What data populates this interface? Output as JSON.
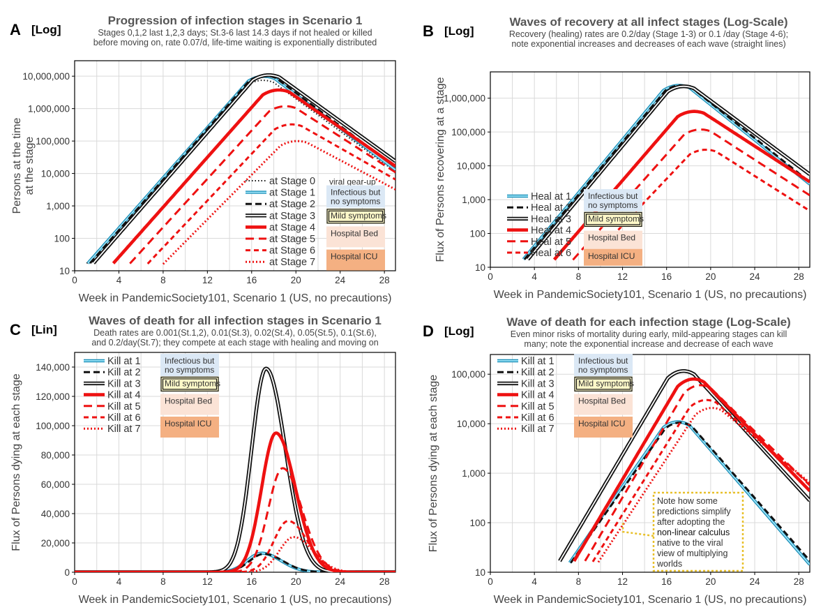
{
  "colors": {
    "cyan": "#3cb7e0",
    "black": "#111111",
    "red": "#ee1111",
    "grid": "#d9d9d9",
    "blue_box": "#dbe8f5",
    "yellow_box": "#fdf8c8",
    "pink_box": "#fbe3d6",
    "orange_box": "#f4b082",
    "note_border": "#e8c02a"
  },
  "stage_boxes": {
    "infectious": "Infectious but no symptoms",
    "mild": "Mild symptoms",
    "hospital_bed": "Hospital Bed",
    "hospital_icu": "Hospital ICU",
    "viral": "viral gear-up"
  },
  "chart_data": [
    {
      "panel": "A",
      "scale_tag": "[Log]",
      "type": "line",
      "log_y": true,
      "title": "Progression of infection stages in Scenario 1",
      "subtitle": [
        "Stages 0,1,2 last 1,2,3 days; St.3-6 last 14.3 days if not healed or killed",
        "before moving on, rate 0.07/d, life-time waiting is exponentially distributed"
      ],
      "xlabel": "Week in PandemicSociety101, Scenario 1 (US, no precautions)",
      "ylabel": [
        "Persons at the time",
        "at the stage"
      ],
      "xlim": [
        0,
        29
      ],
      "ylim": [
        10,
        30000000
      ],
      "xticks": [
        0,
        4,
        8,
        12,
        16,
        20,
        24,
        28
      ],
      "yticks": [
        10,
        100,
        1000,
        10000,
        100000,
        1000000,
        10000000
      ],
      "ytick_labels": [
        "10",
        "100",
        "1,000",
        "10,000",
        "100,000",
        "1,000,000",
        "10,000,000"
      ],
      "series": [
        {
          "name": "at Stage 0",
          "style": "dot-black",
          "peak": 9000000,
          "peak_week": 16.8,
          "start_week": 1.1,
          "end_value": 8000
        },
        {
          "name": "at Stage 1",
          "style": "cyan",
          "peak": 12000000,
          "peak_week": 16.9,
          "start_week": 1.2,
          "end_value": 9000
        },
        {
          "name": "at Stage 2",
          "style": "dash-black",
          "peak": 12500000,
          "peak_week": 17.0,
          "start_week": 1.4,
          "end_value": 11000
        },
        {
          "name": "at Stage 3",
          "style": "double-black",
          "peak": 13000000,
          "peak_week": 17.3,
          "start_week": 1.7,
          "end_value": 17000
        },
        {
          "name": "at Stage 4",
          "style": "thick-red",
          "peak": 4500000,
          "peak_week": 18.2,
          "start_week": 3.5,
          "end_value": 12000
        },
        {
          "name": "at Stage 5",
          "style": "dash-red",
          "peak": 1400000,
          "peak_week": 18.8,
          "start_week": 5.0,
          "end_value": 8000
        },
        {
          "name": "at Stage 6",
          "style": "dash-red-thin",
          "peak": 380000,
          "peak_week": 19.3,
          "start_week": 6.6,
          "end_value": 5000
        },
        {
          "name": "at Stage 7",
          "style": "dot-red",
          "peak": 115000,
          "peak_week": 19.8,
          "start_week": 8.0,
          "end_value": 2500
        }
      ],
      "legend_labels": [
        "at Stage 0",
        "at Stage 1",
        "at Stage 2",
        "at Stage 3",
        "at Stage 4",
        "at Stage 5",
        "at Stage 6",
        "at Stage 7"
      ]
    },
    {
      "panel": "B",
      "scale_tag": "[Log]",
      "type": "line",
      "log_y": true,
      "title": "Waves of recovery at all infect stages (Log-Scale)",
      "subtitle": [
        "Recovery (healing) rates are 0.2/day (Stage 1-3) or 0.1 /day (Stage 4-6);",
        "note exponential increases and decreases of each wave (straight lines)"
      ],
      "xlabel": "Week in PandemicSociety101, Scenario 1 (US, no precautions)",
      "ylabel": [
        "Flux of Persons recovering at a stage"
      ],
      "xlim": [
        0,
        29
      ],
      "ylim": [
        10,
        6000000
      ],
      "xticks": [
        0,
        4,
        8,
        12,
        16,
        20,
        24,
        28
      ],
      "yticks": [
        10,
        100,
        1000,
        10000,
        100000,
        1000000
      ],
      "ytick_labels": [
        "10",
        "100",
        "1,000",
        "10,000",
        "100,000",
        "1,000,000"
      ],
      "series": [
        {
          "name": "Heal at 1",
          "style": "cyan",
          "peak": 2900000,
          "peak_week": 16.9,
          "start_week": 3.0,
          "end_value": 2000
        },
        {
          "name": "Heal at 2",
          "style": "dash-black",
          "peak": 2900000,
          "peak_week": 17.1,
          "start_week": 3.1,
          "end_value": 2300
        },
        {
          "name": "Heal at 3",
          "style": "double-black",
          "peak": 2700000,
          "peak_week": 17.3,
          "start_week": 3.4,
          "end_value": 4000
        },
        {
          "name": "Heal at 4",
          "style": "thick-red",
          "peak": 480000,
          "peak_week": 18.2,
          "start_week": 5.8,
          "end_value": 2500
        },
        {
          "name": "Heal at 5",
          "style": "dash-red",
          "peak": 140000,
          "peak_week": 18.8,
          "start_week": 7.5,
          "end_value": 1000
        },
        {
          "name": "Heal at 6",
          "style": "dash-red-thin",
          "peak": 35000,
          "peak_week": 19.3,
          "start_week": 9.0,
          "end_value": 350
        }
      ],
      "legend_labels": [
        "Heal at 1",
        "Heal at 2",
        "Heal at 3",
        "Heal at 4",
        "Heal at 5",
        "Heal at 6"
      ]
    },
    {
      "panel": "C",
      "scale_tag": "[Lin]",
      "type": "line",
      "log_y": false,
      "title": "Waves of death for all infection stages in Scenario 1",
      "subtitle": [
        "Death rates are 0.001(St.1,2), 0.01(St.3), 0.02(St.4), 0.05(St.5), 0.1(St.6),",
        "and 0.2/day(St.7); they compete at each stage with healing and moving on"
      ],
      "xlabel": "Week in PandemicSociety101, Scenario 1 (US, no precautions)",
      "ylabel": [
        "Flux of Persons dying at each stage"
      ],
      "xlim": [
        0,
        29
      ],
      "ylim": [
        0,
        150000
      ],
      "xticks": [
        0,
        4,
        8,
        12,
        16,
        20,
        24,
        28
      ],
      "yticks": [
        0,
        20000,
        40000,
        60000,
        80000,
        100000,
        120000,
        140000
      ],
      "ytick_labels": [
        "0",
        "20,000",
        "40,000",
        "60,000",
        "80,000",
        "100,000",
        "120,000",
        "140,000"
      ],
      "series": [
        {
          "name": "Kill at 1",
          "style": "cyan",
          "peak": 13000,
          "peak_week": 16.9
        },
        {
          "name": "Kill at 2",
          "style": "dash-black",
          "peak": 12500,
          "peak_week": 17.1
        },
        {
          "name": "Kill at 3",
          "style": "double-black",
          "peak": 139000,
          "peak_week": 17.3
        },
        {
          "name": "Kill at 4",
          "style": "thick-red",
          "peak": 95000,
          "peak_week": 18.2
        },
        {
          "name": "Kill at 5",
          "style": "dash-red",
          "peak": 71000,
          "peak_week": 18.8
        },
        {
          "name": "Kill at 6",
          "style": "dash-red-thin",
          "peak": 35000,
          "peak_week": 19.3
        },
        {
          "name": "Kill at 7",
          "style": "dot-red",
          "peak": 24000,
          "peak_week": 19.8
        }
      ],
      "legend_labels": [
        "Kill at 1",
        "Kill at 2",
        "Kill at 3",
        "Kill at 4",
        "Kill at 5",
        "Kill at 6",
        "Kill at 7"
      ]
    },
    {
      "panel": "D",
      "scale_tag": "[Log]",
      "type": "line",
      "log_y": true,
      "title": "Wave of death for each infection stage (Log-Scale)",
      "subtitle": [
        "Even minor risks of mortality during early, mild-appearing stages can kill",
        "many; note the exponential increase and decrease of each wave"
      ],
      "xlabel": "Week in PandemicSociety101, Scenario 1 (US, no precautions)",
      "ylabel": [
        "Flux of Persons dying at each stage"
      ],
      "xlim": [
        0,
        29
      ],
      "ylim": [
        10,
        250000
      ],
      "xticks": [
        0,
        4,
        8,
        12,
        16,
        20,
        24,
        28
      ],
      "yticks": [
        10,
        100,
        1000,
        10000,
        100000
      ],
      "ytick_labels": [
        "10",
        "100",
        "1,000",
        "10,000",
        "100,000"
      ],
      "series": [
        {
          "name": "Kill at 1",
          "style": "cyan",
          "peak": 13000,
          "peak_week": 16.9,
          "start_week": 7.2,
          "end_value": 10
        },
        {
          "name": "Kill at 2",
          "style": "dash-black",
          "peak": 12500,
          "peak_week": 17.1,
          "start_week": 7.3,
          "end_value": 12
        },
        {
          "name": "Kill at 3",
          "style": "double-black",
          "peak": 139000,
          "peak_week": 17.3,
          "start_week": 6.3,
          "end_value": 200
        },
        {
          "name": "Kill at 4",
          "style": "thick-red",
          "peak": 95000,
          "peak_week": 18.2,
          "start_week": 7.6,
          "end_value": 320
        },
        {
          "name": "Kill at 5",
          "style": "dash-red",
          "peak": 71000,
          "peak_week": 18.8,
          "start_week": 8.6,
          "end_value": 420
        },
        {
          "name": "Kill at 6",
          "style": "dash-red-thin",
          "peak": 35000,
          "peak_week": 19.3,
          "start_week": 9.3,
          "end_value": 460
        },
        {
          "name": "Kill at 7",
          "style": "dot-red",
          "peak": 24000,
          "peak_week": 19.8,
          "start_week": 9.8,
          "end_value": 500
        }
      ],
      "legend_labels": [
        "Kill at 1",
        "Kill at 2",
        "Kill at 3",
        "Kill at 4",
        "Kill at 5",
        "Kill at 6",
        "Kill at 7"
      ],
      "note": [
        "Note how some",
        "predictions simplify",
        "after adopting the",
        "non-linear calculus",
        "native to the viral",
        "view of multiplying",
        "worlds"
      ]
    }
  ]
}
